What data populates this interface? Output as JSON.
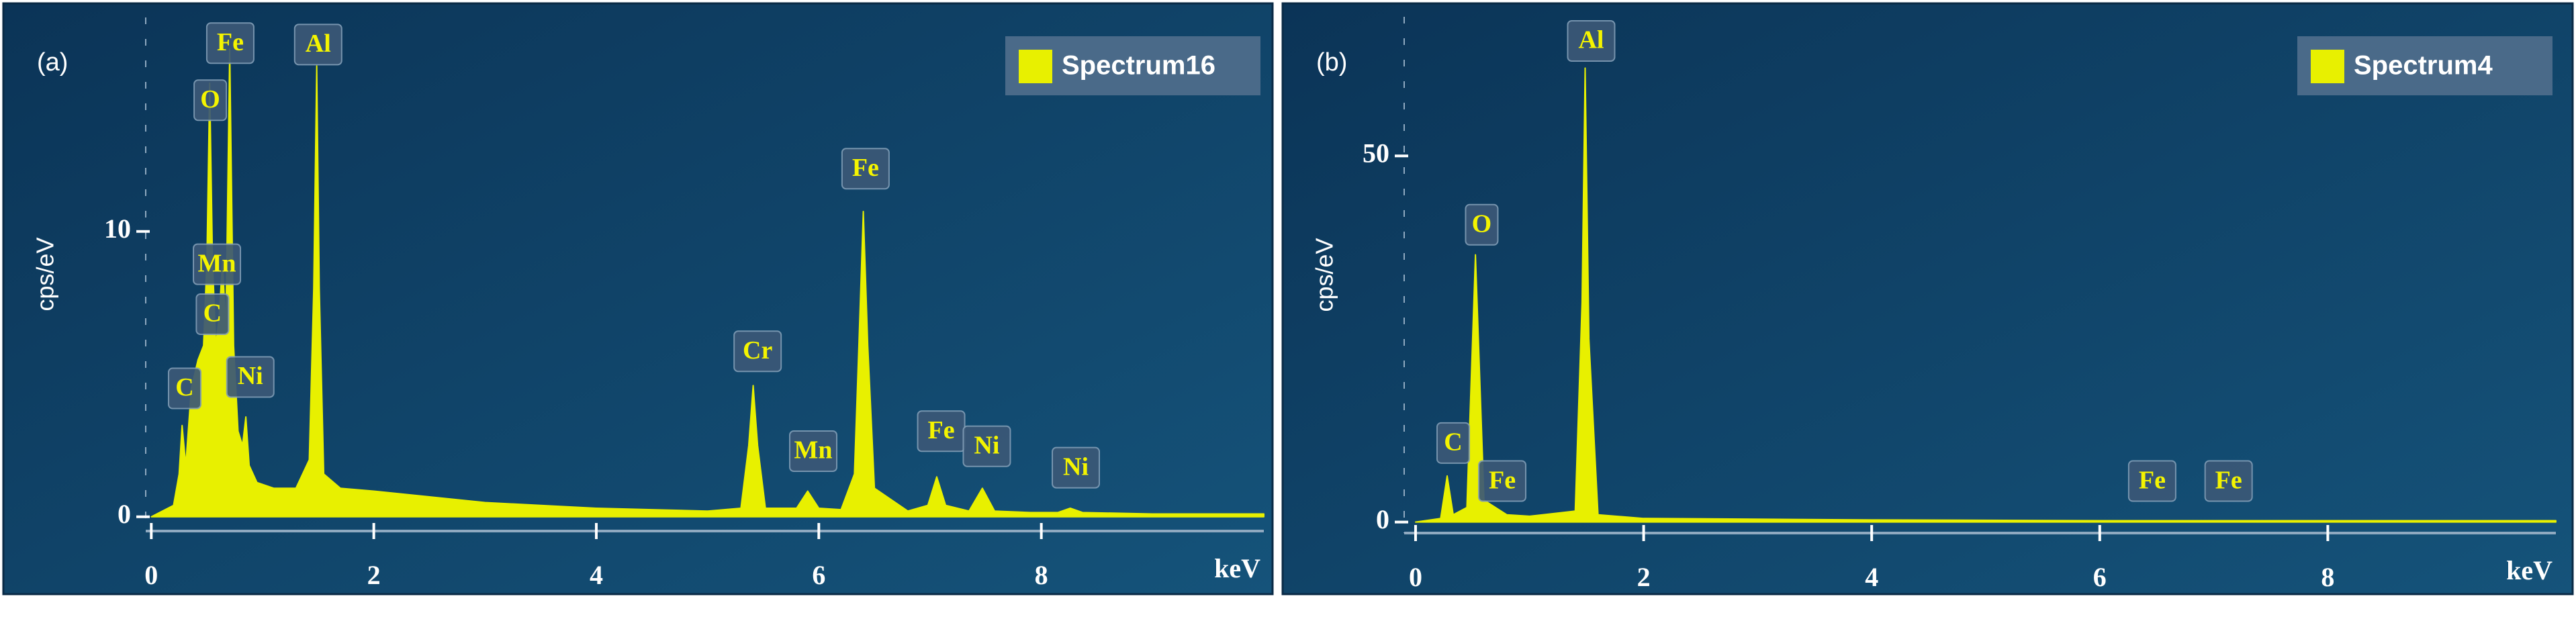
{
  "chart_data": [
    {
      "type": "area",
      "panel_label": "(a)",
      "x_label": "keV",
      "y_label": "cps/eV",
      "xlim": [
        -0.05,
        10
      ],
      "xticks": [
        0,
        2,
        4,
        6,
        8
      ],
      "ylim": [
        -0.5,
        17.5
      ],
      "yticks": [
        0,
        10
      ],
      "legend": "top-right",
      "x": [
        0,
        0.2,
        0.25,
        0.277,
        0.31,
        0.36,
        0.42,
        0.47,
        0.5,
        0.525,
        0.55,
        0.58,
        0.61,
        0.64,
        0.67,
        0.705,
        0.74,
        0.78,
        0.82,
        0.85,
        0.88,
        0.95,
        1.1,
        1.3,
        1.42,
        1.46,
        1.487,
        1.51,
        1.55,
        1.7,
        2.0,
        2.5,
        3.0,
        3.5,
        4.0,
        4.5,
        5.0,
        5.3,
        5.37,
        5.41,
        5.45,
        5.52,
        5.8,
        5.9,
        6.0,
        6.2,
        6.32,
        6.36,
        6.4,
        6.44,
        6.5,
        6.8,
        6.98,
        7.06,
        7.14,
        7.35,
        7.47,
        7.58,
        7.9,
        8.15,
        8.26,
        8.37,
        9.0,
        10.0
      ],
      "series": [
        {
          "name": "Spectrum16",
          "color": "#e8f000",
          "values": [
            0,
            0.4,
            1.5,
            3.2,
            1.8,
            4.5,
            5.5,
            6,
            9,
            15.2,
            9,
            6,
            7,
            9,
            6.5,
            16.4,
            6,
            3,
            2.5,
            3.5,
            1.8,
            1.2,
            1,
            1,
            2,
            8,
            15.8,
            8,
            1.5,
            1,
            0.9,
            0.7,
            0.5,
            0.4,
            0.3,
            0.25,
            0.2,
            0.3,
            2.5,
            4.6,
            2.5,
            0.3,
            0.3,
            0.9,
            0.3,
            0.25,
            1.5,
            6,
            10.7,
            6,
            1,
            0.2,
            0.4,
            1.4,
            0.4,
            0.2,
            1.0,
            0.2,
            0.15,
            0.15,
            0.3,
            0.15,
            0.1,
            0.1
          ]
        }
      ],
      "annotations": [
        {
          "text": "C",
          "x": 0.3,
          "y": 4.5
        },
        {
          "text": "O",
          "x": 0.53,
          "y": 14.6
        },
        {
          "text": "Fe",
          "x": 0.71,
          "y": 16.6
        },
        {
          "text": "Mn",
          "x": 0.59,
          "y": 8.85
        },
        {
          "text": "C",
          "x": 0.55,
          "y": 7.1
        },
        {
          "text": "Ni",
          "x": 0.89,
          "y": 4.9
        },
        {
          "text": "Al",
          "x": 1.5,
          "y": 16.55
        },
        {
          "text": "Cr",
          "x": 5.45,
          "y": 5.8
        },
        {
          "text": "Mn",
          "x": 5.95,
          "y": 2.3
        },
        {
          "text": "Fe",
          "x": 6.42,
          "y": 12.2
        },
        {
          "text": "Fe",
          "x": 7.1,
          "y": 3.0
        },
        {
          "text": "Ni",
          "x": 7.51,
          "y": 2.47
        },
        {
          "text": "Ni",
          "x": 8.31,
          "y": 1.72
        }
      ]
    },
    {
      "type": "area",
      "panel_label": "(b)",
      "x_label": "keV",
      "y_label": "cps/eV",
      "xlim": [
        -0.1,
        10
      ],
      "xticks": [
        0,
        2,
        4,
        6,
        8
      ],
      "ylim": [
        -1.5,
        69
      ],
      "yticks": [
        0,
        50
      ],
      "legend": "top-right",
      "x": [
        0,
        0.22,
        0.277,
        0.33,
        0.45,
        0.525,
        0.6,
        0.7,
        0.8,
        1.0,
        1.4,
        1.46,
        1.487,
        1.52,
        1.6,
        2.0,
        4.0,
        6.0,
        8.0,
        10.0
      ],
      "series": [
        {
          "name": "Spectrum4",
          "color": "#e8f000",
          "values": [
            0,
            0.5,
            6.3,
            1,
            2,
            36.5,
            3,
            2,
            1,
            0.8,
            1.5,
            30,
            62,
            25,
            1,
            0.5,
            0.3,
            0.2,
            0.2,
            0.2
          ]
        }
      ],
      "annotations": [
        {
          "text": "C",
          "x": 0.33,
          "y": 10.8
        },
        {
          "text": "O",
          "x": 0.58,
          "y": 40.6
        },
        {
          "text": "Fe",
          "x": 0.76,
          "y": 5.6
        },
        {
          "text": "Al",
          "x": 1.54,
          "y": 65.7
        },
        {
          "text": "Fe",
          "x": 6.46,
          "y": 5.6
        },
        {
          "text": "Fe",
          "x": 7.13,
          "y": 5.6
        }
      ]
    }
  ]
}
